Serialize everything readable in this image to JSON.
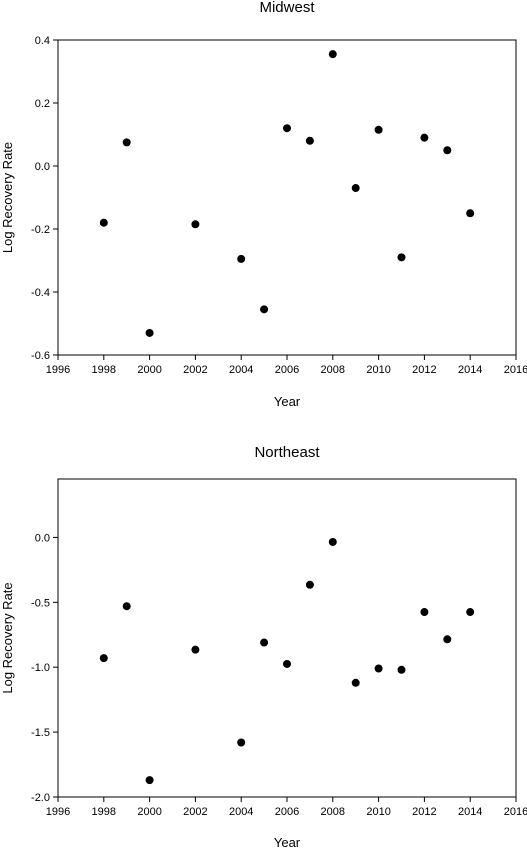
{
  "chart_data": [
    {
      "type": "scatter",
      "title": "Midwest",
      "xlabel": "Year",
      "ylabel": "Log Recovery Rate",
      "xlim": [
        1996,
        2016
      ],
      "ylim": [
        -0.6,
        0.4
      ],
      "xticks": [
        1996,
        1998,
        2000,
        2002,
        2004,
        2006,
        2008,
        2010,
        2012,
        2014,
        2016
      ],
      "yticks": [
        -0.6,
        -0.4,
        -0.2,
        0.0,
        0.2,
        0.4
      ],
      "ytick_decimals": 1,
      "grid": false,
      "legend": "none",
      "marker_color": "#000000",
      "x": [
        1998,
        1999,
        2000,
        2002,
        2004,
        2005,
        2006,
        2007,
        2008,
        2009,
        2010,
        2011,
        2012,
        2013,
        2014
      ],
      "y": [
        -0.18,
        0.075,
        -0.53,
        -0.185,
        -0.295,
        -0.455,
        0.12,
        0.08,
        0.355,
        -0.07,
        0.115,
        -0.29,
        0.09,
        0.05,
        -0.15
      ]
    },
    {
      "type": "scatter",
      "title": "Northeast",
      "xlabel": "Year",
      "ylabel": "Log Recovery Rate",
      "xlim": [
        1996,
        2016
      ],
      "ylim": [
        -2.0,
        0.45
      ],
      "xticks": [
        1996,
        1998,
        2000,
        2002,
        2004,
        2006,
        2008,
        2010,
        2012,
        2014,
        2016
      ],
      "yticks": [
        -2.0,
        -1.5,
        -1.0,
        -0.5,
        0.0
      ],
      "ytick_decimals": 1,
      "grid": false,
      "legend": "none",
      "marker_color": "#000000",
      "x": [
        1998,
        1999,
        2000,
        2002,
        2004,
        2005,
        2006,
        2007,
        2008,
        2009,
        2010,
        2011,
        2012,
        2013,
        2014
      ],
      "y": [
        -0.93,
        -0.53,
        -1.87,
        -0.865,
        -1.58,
        -0.81,
        -0.975,
        -0.365,
        -0.035,
        -1.12,
        -1.01,
        -1.02,
        -0.575,
        -0.785,
        -0.575
      ]
    }
  ]
}
